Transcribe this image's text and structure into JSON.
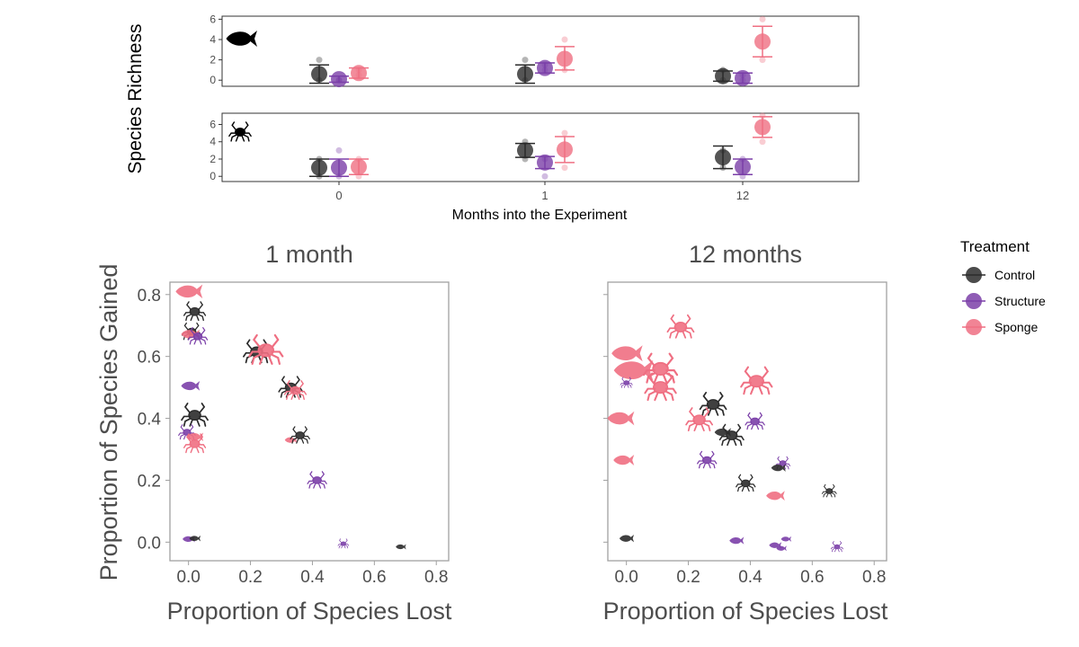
{
  "colors": {
    "control": "#2b2b2b",
    "structure": "#7b3fa8",
    "sponge": "#ef6f82",
    "frame": "#a0a0a0",
    "axis_text": "#4d4d4d"
  },
  "chart_data": [
    {
      "type": "scatter",
      "panel": "fish-richness",
      "ylabel": "Species Richness",
      "xlabel": "Months into the Experiment",
      "categories": [
        "0",
        "1",
        "12"
      ],
      "ylim": [
        -0.6,
        6.3
      ],
      "yticks": [
        "0",
        "2",
        "4",
        "6"
      ],
      "series": [
        {
          "name": "Control",
          "key": "control",
          "means": [
            0.6,
            0.6,
            0.4
          ],
          "lo": [
            -0.3,
            -0.3,
            -0.1
          ],
          "hi": [
            1.5,
            1.5,
            0.9
          ],
          "raw": [
            [
              0,
              2
            ],
            [
              0,
              2
            ],
            [
              0,
              1
            ]
          ]
        },
        {
          "name": "Structure",
          "key": "structure",
          "means": [
            0.1,
            1.2,
            0.2
          ],
          "lo": [
            -0.2,
            0.7,
            -0.3
          ],
          "hi": [
            0.4,
            1.7,
            0.7
          ],
          "raw": [
            [
              0,
              0
            ],
            [
              1,
              1.5
            ],
            [
              0,
              0.5
            ]
          ]
        },
        {
          "name": "Sponge",
          "key": "sponge",
          "means": [
            0.7,
            2.1,
            3.8
          ],
          "lo": [
            0.2,
            1.0,
            2.3
          ],
          "hi": [
            1.2,
            3.3,
            5.3
          ],
          "raw": [
            [
              0.5,
              1
            ],
            [
              1,
              4
            ],
            [
              2,
              6
            ]
          ]
        }
      ]
    },
    {
      "type": "scatter",
      "panel": "crab-richness",
      "ylabel": "Species Richness",
      "xlabel": "Months into the Experiment",
      "categories": [
        "0",
        "1",
        "12"
      ],
      "ylim": [
        -0.6,
        7.3
      ],
      "yticks": [
        "0",
        "2",
        "4",
        "6"
      ],
      "series": [
        {
          "name": "Control",
          "key": "control",
          "means": [
            1.0,
            3.0,
            2.2
          ],
          "lo": [
            0.0,
            2.2,
            0.9
          ],
          "hi": [
            2.0,
            3.8,
            3.5
          ],
          "raw": [
            [
              0,
              2
            ],
            [
              2,
              4
            ],
            [
              1,
              3
            ]
          ]
        },
        {
          "name": "Structure",
          "key": "structure",
          "means": [
            1.0,
            1.6,
            1.1
          ],
          "lo": [
            0.0,
            0.9,
            0.2
          ],
          "hi": [
            2.0,
            2.3,
            2.0
          ],
          "raw": [
            [
              0,
              3
            ],
            [
              0,
              2
            ],
            [
              0,
              2
            ]
          ]
        },
        {
          "name": "Sponge",
          "key": "sponge",
          "means": [
            1.1,
            3.1,
            5.7
          ],
          "lo": [
            0.2,
            1.6,
            4.5
          ],
          "hi": [
            2.0,
            4.6,
            6.9
          ],
          "raw": [
            [
              0,
              2
            ],
            [
              1,
              5
            ],
            [
              4,
              7
            ]
          ]
        }
      ]
    },
    {
      "type": "scatter",
      "panel": "one-month",
      "title": "1 month",
      "xlabel": "Proportion of Species Lost",
      "ylabel": "Proportion of Species Gained",
      "xlim": [
        -0.06,
        0.84
      ],
      "ylim": [
        -0.06,
        0.84
      ],
      "xticks": [
        "0.0",
        "0.2",
        "0.4",
        "0.6",
        "0.8"
      ],
      "yticks": [
        "0.0",
        "0.2",
        "0.4",
        "0.6",
        "0.8"
      ],
      "points": [
        {
          "s": "sponge",
          "icon": "fish",
          "x": 0.0,
          "y": 0.81,
          "size": 1.3
        },
        {
          "s": "control",
          "icon": "crab",
          "x": 0.02,
          "y": 0.745,
          "size": 0.9
        },
        {
          "s": "control",
          "icon": "crab",
          "x": 0.01,
          "y": 0.68,
          "size": 0.8
        },
        {
          "s": "sponge",
          "icon": "fish",
          "x": 0.005,
          "y": 0.672,
          "size": 0.9
        },
        {
          "s": "structure",
          "icon": "crab",
          "x": 0.03,
          "y": 0.665,
          "size": 0.8
        },
        {
          "s": "control",
          "icon": "crab",
          "x": 0.22,
          "y": 0.615,
          "size": 1.1
        },
        {
          "s": "sponge",
          "icon": "crab",
          "x": 0.25,
          "y": 0.62,
          "size": 1.4
        },
        {
          "s": "structure",
          "icon": "fish",
          "x": 0.005,
          "y": 0.505,
          "size": 0.9
        },
        {
          "s": "control",
          "icon": "crab",
          "x": 0.33,
          "y": 0.5,
          "size": 1.0
        },
        {
          "s": "sponge",
          "icon": "crab",
          "x": 0.345,
          "y": 0.49,
          "size": 0.9
        },
        {
          "s": "control",
          "icon": "crab",
          "x": 0.02,
          "y": 0.41,
          "size": 1.1
        },
        {
          "s": "structure",
          "icon": "crab",
          "x": -0.005,
          "y": 0.355,
          "size": 0.7
        },
        {
          "s": "sponge",
          "icon": "fish",
          "x": 0.02,
          "y": 0.34,
          "size": 0.8
        },
        {
          "s": "sponge",
          "icon": "crab",
          "x": 0.02,
          "y": 0.318,
          "size": 0.9
        },
        {
          "s": "sponge",
          "icon": "fish",
          "x": 0.33,
          "y": 0.33,
          "size": 0.6
        },
        {
          "s": "control",
          "icon": "crab",
          "x": 0.36,
          "y": 0.345,
          "size": 0.8
        },
        {
          "s": "structure",
          "icon": "crab",
          "x": 0.415,
          "y": 0.2,
          "size": 0.8
        },
        {
          "s": "structure",
          "icon": "fish",
          "x": 0.0,
          "y": 0.01,
          "size": 0.6
        },
        {
          "s": "control",
          "icon": "fish",
          "x": 0.02,
          "y": 0.012,
          "size": 0.55
        },
        {
          "s": "structure",
          "icon": "crab",
          "x": 0.5,
          "y": -0.005,
          "size": 0.45
        },
        {
          "s": "control",
          "icon": "fish",
          "x": 0.685,
          "y": -0.015,
          "size": 0.5
        }
      ]
    },
    {
      "type": "scatter",
      "panel": "twelve-months",
      "title": "12 months",
      "xlabel": "Proportion of Species Lost",
      "ylabel": "Proportion of Species Gained",
      "xlim": [
        -0.06,
        0.84
      ],
      "ylim": [
        -0.06,
        0.84
      ],
      "xticks": [
        "0.0",
        "0.2",
        "0.4",
        "0.6",
        "0.8"
      ],
      "yticks": [
        "0.0",
        "0.2",
        "0.4",
        "0.6",
        "0.8"
      ],
      "points": [
        {
          "s": "sponge",
          "icon": "crab",
          "x": 0.175,
          "y": 0.695,
          "size": 1.1
        },
        {
          "s": "sponge",
          "icon": "fish",
          "x": 0.0,
          "y": 0.61,
          "size": 1.5
        },
        {
          "s": "sponge",
          "icon": "fish",
          "x": 0.02,
          "y": 0.555,
          "size": 1.9
        },
        {
          "s": "sponge",
          "icon": "crab",
          "x": 0.11,
          "y": 0.56,
          "size": 1.4
        },
        {
          "s": "structure",
          "icon": "crab",
          "x": 0.0,
          "y": 0.515,
          "size": 0.5
        },
        {
          "s": "sponge",
          "icon": "crab",
          "x": 0.11,
          "y": 0.5,
          "size": 1.3
        },
        {
          "s": "sponge",
          "icon": "crab",
          "x": 0.42,
          "y": 0.52,
          "size": 1.3
        },
        {
          "s": "control",
          "icon": "crab",
          "x": 0.28,
          "y": 0.445,
          "size": 1.1
        },
        {
          "s": "sponge",
          "icon": "fish",
          "x": -0.02,
          "y": 0.4,
          "size": 1.3
        },
        {
          "s": "sponge",
          "icon": "crab",
          "x": 0.235,
          "y": 0.395,
          "size": 1.1
        },
        {
          "s": "structure",
          "icon": "crab",
          "x": 0.415,
          "y": 0.39,
          "size": 0.8
        },
        {
          "s": "control",
          "icon": "fish",
          "x": 0.31,
          "y": 0.355,
          "size": 0.8
        },
        {
          "s": "control",
          "icon": "crab",
          "x": 0.34,
          "y": 0.345,
          "size": 1.0
        },
        {
          "s": "sponge",
          "icon": "fish",
          "x": -0.01,
          "y": 0.265,
          "size": 1.0
        },
        {
          "s": "structure",
          "icon": "crab",
          "x": 0.26,
          "y": 0.265,
          "size": 0.8
        },
        {
          "s": "structure",
          "icon": "crab",
          "x": 0.505,
          "y": 0.255,
          "size": 0.6
        },
        {
          "s": "control",
          "icon": "fish",
          "x": 0.49,
          "y": 0.24,
          "size": 0.7
        },
        {
          "s": "control",
          "icon": "crab",
          "x": 0.385,
          "y": 0.19,
          "size": 0.8
        },
        {
          "s": "sponge",
          "icon": "fish",
          "x": 0.48,
          "y": 0.15,
          "size": 0.9
        },
        {
          "s": "control",
          "icon": "crab",
          "x": 0.655,
          "y": 0.165,
          "size": 0.6
        },
        {
          "s": "control",
          "icon": "fish",
          "x": 0.0,
          "y": 0.012,
          "size": 0.7
        },
        {
          "s": "structure",
          "icon": "fish",
          "x": 0.355,
          "y": 0.005,
          "size": 0.7
        },
        {
          "s": "structure",
          "icon": "fish",
          "x": 0.515,
          "y": 0.01,
          "size": 0.5
        },
        {
          "s": "structure",
          "icon": "fish",
          "x": 0.48,
          "y": -0.01,
          "size": 0.6
        },
        {
          "s": "structure",
          "icon": "fish",
          "x": 0.5,
          "y": -0.02,
          "size": 0.5
        },
        {
          "s": "structure",
          "icon": "crab",
          "x": 0.68,
          "y": -0.015,
          "size": 0.5
        }
      ]
    }
  ],
  "legend": {
    "title": "Treatment",
    "items": [
      {
        "label": "Control",
        "key": "control"
      },
      {
        "label": "Structure",
        "key": "structure"
      },
      {
        "label": "Sponge",
        "key": "sponge"
      }
    ]
  }
}
